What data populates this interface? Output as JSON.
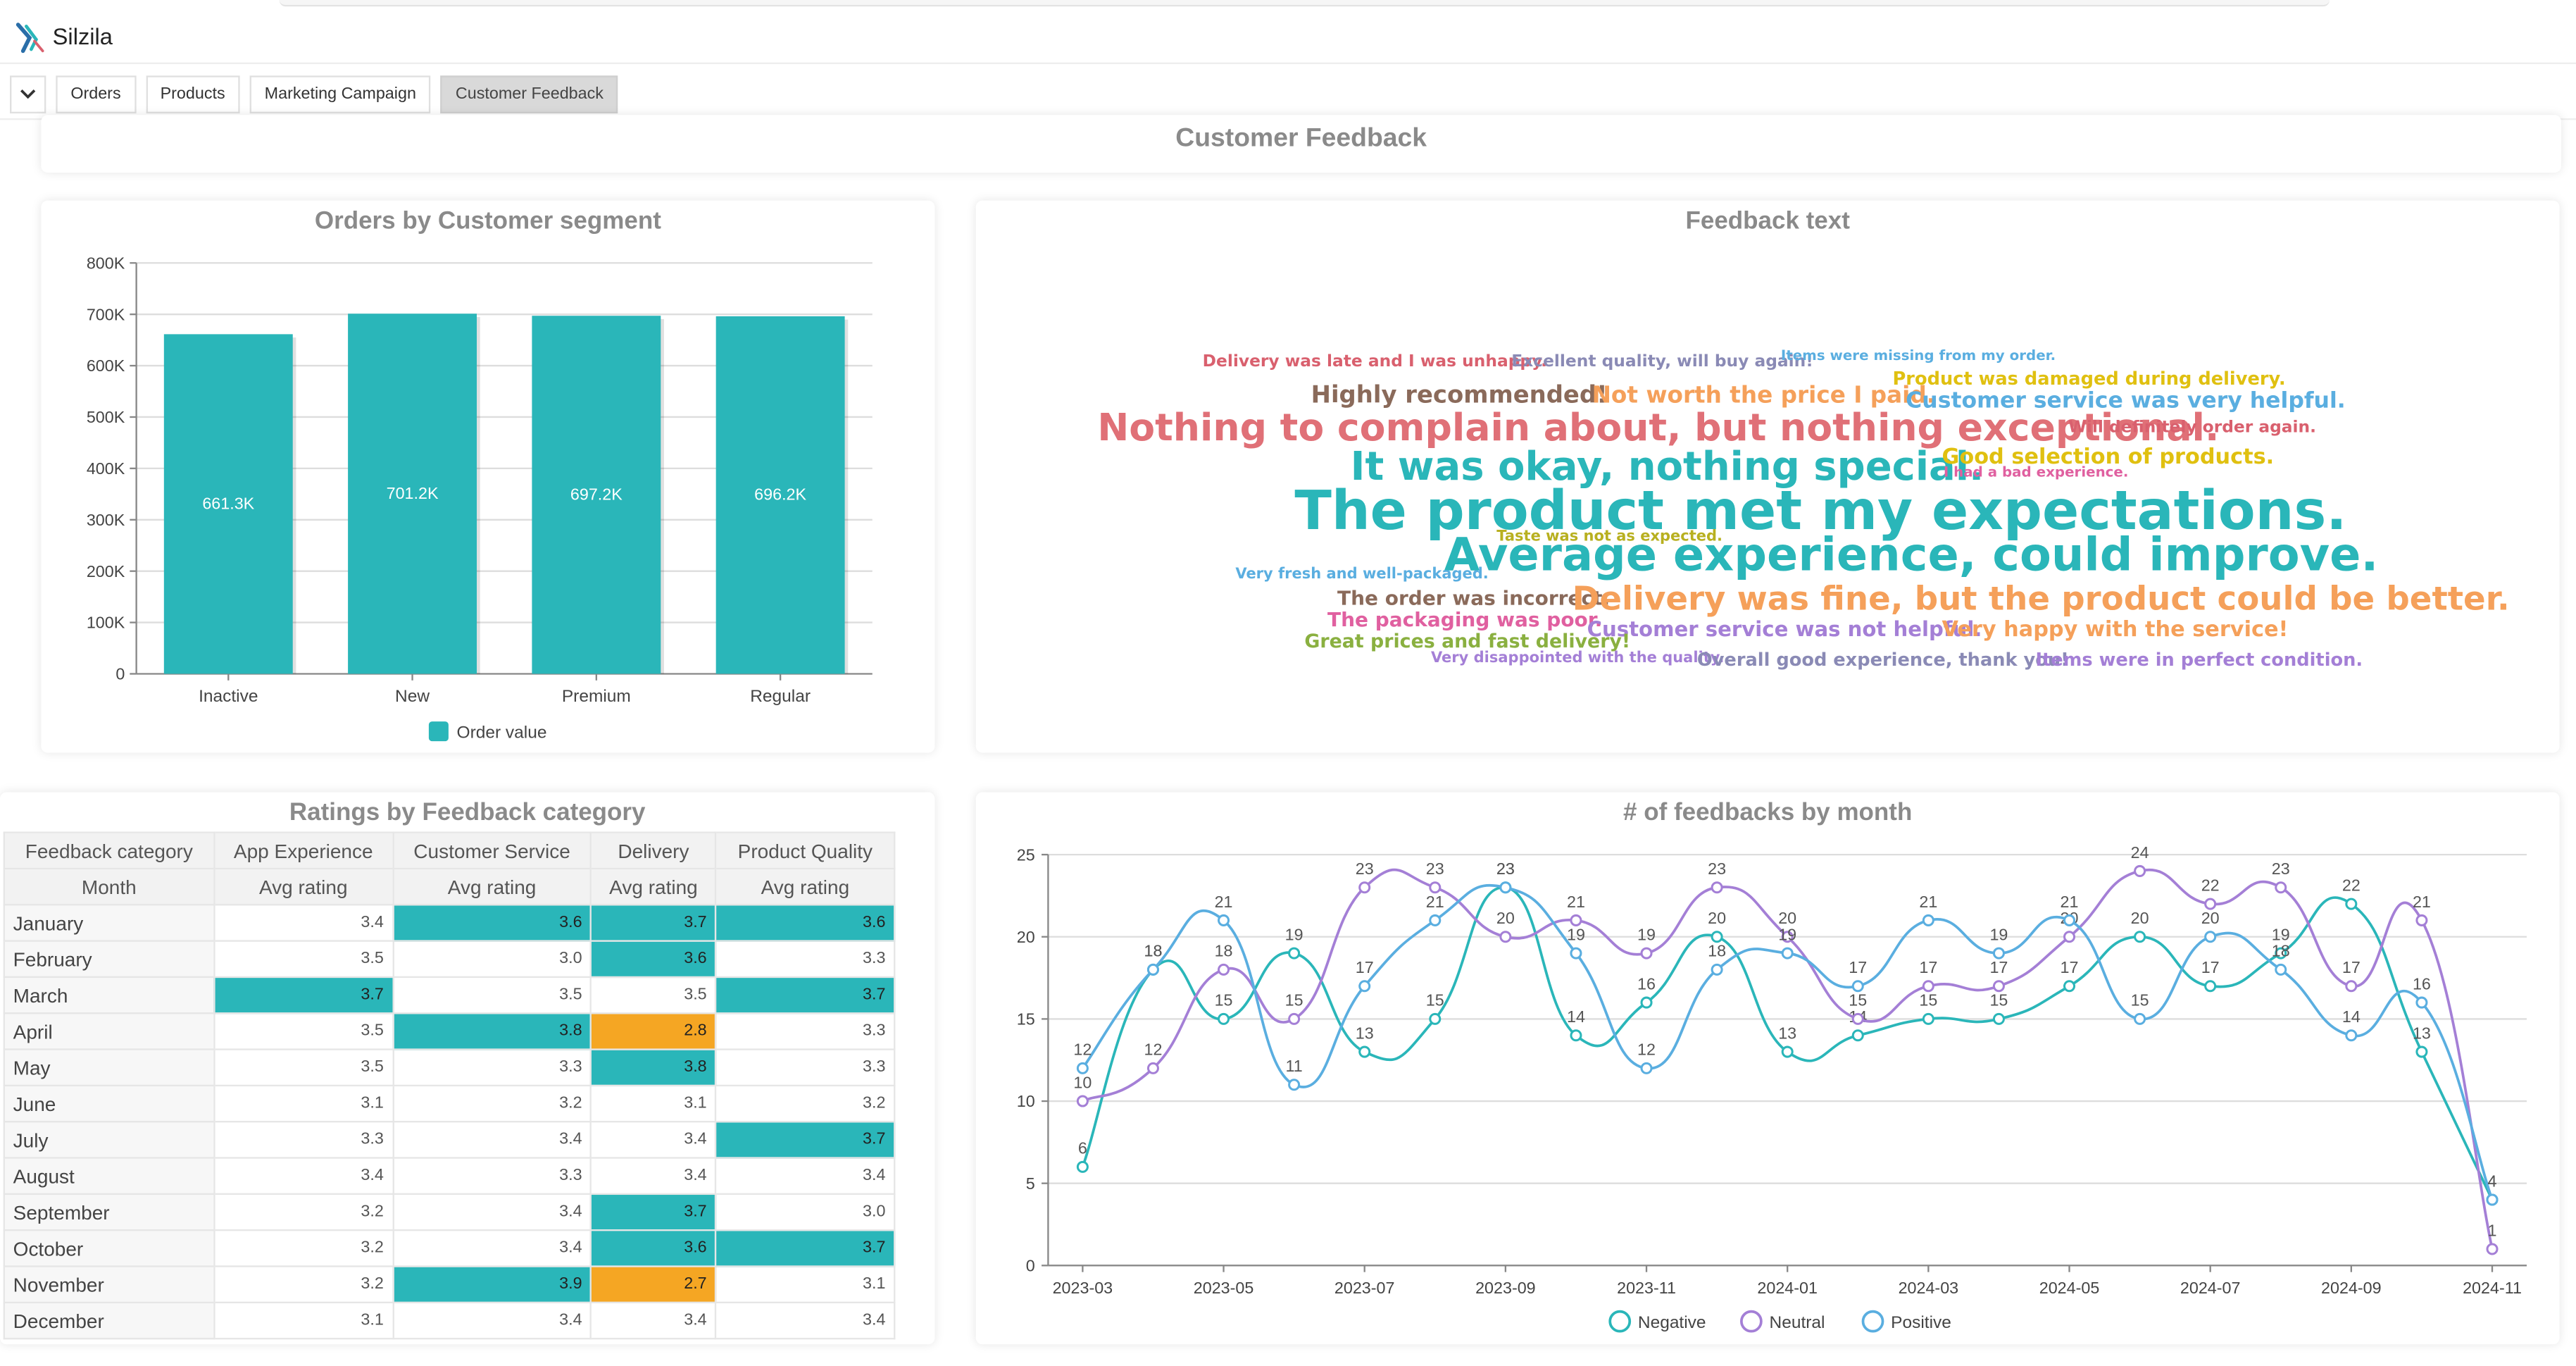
{
  "app": {
    "title": "Silzila"
  },
  "tabs": [
    "Orders",
    "Products",
    "Marketing Campaign",
    "Customer Feedback"
  ],
  "active_tab": 3,
  "dashboard_title": "Customer Feedback",
  "colors": {
    "teal": "#2ab6b9",
    "orange": "#f5a623",
    "neutral": "#a47fd6",
    "positive": "#5aaee0"
  },
  "orders_chart": {
    "title": "Orders by Customer segment",
    "legend": "Order value",
    "y_ticks": [
      "0",
      "100K",
      "200K",
      "300K",
      "400K",
      "500K",
      "600K",
      "700K",
      "800K"
    ],
    "labels": [
      "661.3K",
      "701.2K",
      "697.2K",
      "696.2K"
    ]
  },
  "feedback_text": {
    "title": "Feedback text",
    "words": [
      {
        "text": "Delivery was late and I was unhappy.",
        "color": "#d9606e"
      },
      {
        "text": "Excellent quality, will buy again!",
        "color": "#8a8ab5"
      },
      {
        "text": "Items were missing from my order.",
        "color": "#5aaee0"
      },
      {
        "text": "Product was damaged during delivery.",
        "color": "#e0c010"
      },
      {
        "text": "Highly recommended!",
        "color": "#8a6a5a"
      },
      {
        "text": "Not worth the price I paid.",
        "color": "#f5a05a"
      },
      {
        "text": "Customer service was very helpful.",
        "color": "#5aaee0"
      },
      {
        "text": "Nothing to complain about, but nothing exceptional.",
        "color": "#e07077"
      },
      {
        "text": "Will definitely order again.",
        "color": "#d9606e"
      },
      {
        "text": "It was okay, nothing special.",
        "color": "#2ab6b9"
      },
      {
        "text": "Good selection of products.",
        "color": "#e0c010"
      },
      {
        "text": "I had a bad experience.",
        "color": "#e060a0"
      },
      {
        "text": "The product met my expectations.",
        "color": "#2ab6b9"
      },
      {
        "text": "Taste was not as expected.",
        "color": "#b8b020"
      },
      {
        "text": "Average experience, could improve.",
        "color": "#2ab6b9"
      },
      {
        "text": "Very fresh and well-packaged.",
        "color": "#5aaee0"
      },
      {
        "text": "The order was incorrect.",
        "color": "#8a6a5a"
      },
      {
        "text": "Delivery was fine, but the product could be better.",
        "color": "#f5a05a"
      },
      {
        "text": "The packaging was poor.",
        "color": "#e060a0"
      },
      {
        "text": "Customer service was not helpful.",
        "color": "#a47fd6"
      },
      {
        "text": "Very happy with the service!",
        "color": "#f5a05a"
      },
      {
        "text": "Great prices and fast delivery!",
        "color": "#8ab040"
      },
      {
        "text": "Very disappointed with the quality.",
        "color": "#a47fd6"
      },
      {
        "text": "Overall good experience, thank you!",
        "color": "#8a8ab5"
      },
      {
        "text": "Items were in perfect condition.",
        "color": "#a47fd6"
      }
    ]
  },
  "ratings": {
    "title": "Ratings by Feedback category",
    "header1": "Feedback category",
    "header2": "Month",
    "categories": [
      "App Experience",
      "Customer Service",
      "Delivery",
      "Product Quality"
    ],
    "measure": "Avg rating",
    "rows": [
      {
        "month": "January",
        "values": [
          "3.4",
          "3.6",
          "3.7",
          "3.6"
        ],
        "hl": [
          "",
          "hi",
          "hi",
          "hi"
        ]
      },
      {
        "month": "February",
        "values": [
          "3.5",
          "3.0",
          "3.6",
          "3.3"
        ],
        "hl": [
          "",
          "",
          "hi",
          ""
        ]
      },
      {
        "month": "March",
        "values": [
          "3.7",
          "3.5",
          "3.5",
          "3.7"
        ],
        "hl": [
          "hi",
          "",
          "",
          "hi"
        ]
      },
      {
        "month": "April",
        "values": [
          "3.5",
          "3.8",
          "2.8",
          "3.3"
        ],
        "hl": [
          "",
          "hi",
          "lo",
          ""
        ]
      },
      {
        "month": "May",
        "values": [
          "3.5",
          "3.3",
          "3.8",
          "3.3"
        ],
        "hl": [
          "",
          "",
          "hi",
          ""
        ]
      },
      {
        "month": "June",
        "values": [
          "3.1",
          "3.2",
          "3.1",
          "3.2"
        ],
        "hl": [
          "",
          "",
          "",
          ""
        ]
      },
      {
        "month": "July",
        "values": [
          "3.3",
          "3.4",
          "3.4",
          "3.7"
        ],
        "hl": [
          "",
          "",
          "",
          "hi"
        ]
      },
      {
        "month": "August",
        "values": [
          "3.4",
          "3.3",
          "3.4",
          "3.4"
        ],
        "hl": [
          "",
          "",
          "",
          ""
        ]
      },
      {
        "month": "September",
        "values": [
          "3.2",
          "3.4",
          "3.7",
          "3.0"
        ],
        "hl": [
          "",
          "",
          "hi",
          ""
        ]
      },
      {
        "month": "October",
        "values": [
          "3.2",
          "3.4",
          "3.6",
          "3.7"
        ],
        "hl": [
          "",
          "",
          "hi",
          "hi"
        ]
      },
      {
        "month": "November",
        "values": [
          "3.2",
          "3.9",
          "2.7",
          "3.1"
        ],
        "hl": [
          "",
          "hi",
          "lo",
          ""
        ]
      },
      {
        "month": "December",
        "values": [
          "3.1",
          "3.4",
          "3.4",
          "3.4"
        ],
        "hl": [
          "",
          "",
          "",
          ""
        ]
      }
    ]
  },
  "feedback_month": {
    "title": "# of feedbacks by month"
  },
  "chart_data": [
    {
      "type": "bar",
      "title": "Orders by Customer segment",
      "categories": [
        "Inactive",
        "New",
        "Premium",
        "Regular"
      ],
      "series": [
        {
          "name": "Order value",
          "values": [
            661300,
            701200,
            697200,
            696200
          ]
        }
      ],
      "ylim": [
        0,
        800000
      ],
      "grid": true,
      "legend_position": "bottom"
    },
    {
      "type": "line",
      "title": "# of feedbacks by month",
      "x": [
        "2023-03",
        "2023-04",
        "2023-05",
        "2023-06",
        "2023-07",
        "2023-08",
        "2023-09",
        "2023-10",
        "2023-11",
        "2023-12",
        "2024-01",
        "2024-02",
        "2024-03",
        "2024-04",
        "2024-05",
        "2024-06",
        "2024-07",
        "2024-08",
        "2024-09",
        "2024-10",
        "2024-11"
      ],
      "x_ticks": [
        "2023-03",
        "2023-05",
        "2023-07",
        "2023-09",
        "2023-11",
        "2024-01",
        "2024-03",
        "2024-05",
        "2024-07",
        "2024-09",
        "2024-11"
      ],
      "series": [
        {
          "name": "Negative",
          "values": [
            6,
            18,
            15,
            19,
            13,
            15,
            23,
            14,
            16,
            20,
            13,
            14,
            15,
            15,
            17,
            20,
            17,
            19,
            22,
            13,
            4
          ]
        },
        {
          "name": "Neutral",
          "values": [
            10,
            12,
            18,
            15,
            23,
            23,
            20,
            21,
            19,
            23,
            20,
            15,
            17,
            17,
            20,
            24,
            22,
            23,
            17,
            21,
            1
          ]
        },
        {
          "name": "Positive",
          "values": [
            12,
            18,
            21,
            11,
            17,
            21,
            23,
            19,
            12,
            18,
            19,
            17,
            21,
            19,
            21,
            15,
            20,
            18,
            14,
            16,
            4
          ]
        }
      ],
      "ylim": [
        0,
        25
      ],
      "y_ticks": [
        "0",
        "5",
        "10",
        "15",
        "20",
        "25"
      ],
      "grid": true,
      "legend_position": "bottom"
    }
  ]
}
